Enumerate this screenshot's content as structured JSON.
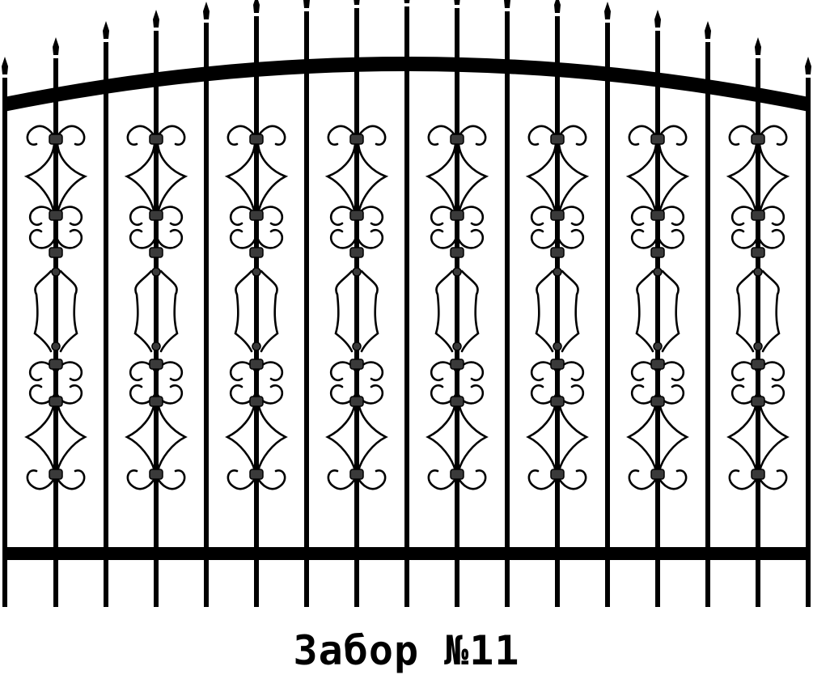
{
  "caption": "Забор №11",
  "colors": {
    "iron": "#000000",
    "collar": "#3a3a3a",
    "background": "#ffffff"
  },
  "fence": {
    "picket_count": 17,
    "ornament_panel_count": 8,
    "top_rail_shape": "arched",
    "spike_icon": "spear-tip-icon"
  }
}
